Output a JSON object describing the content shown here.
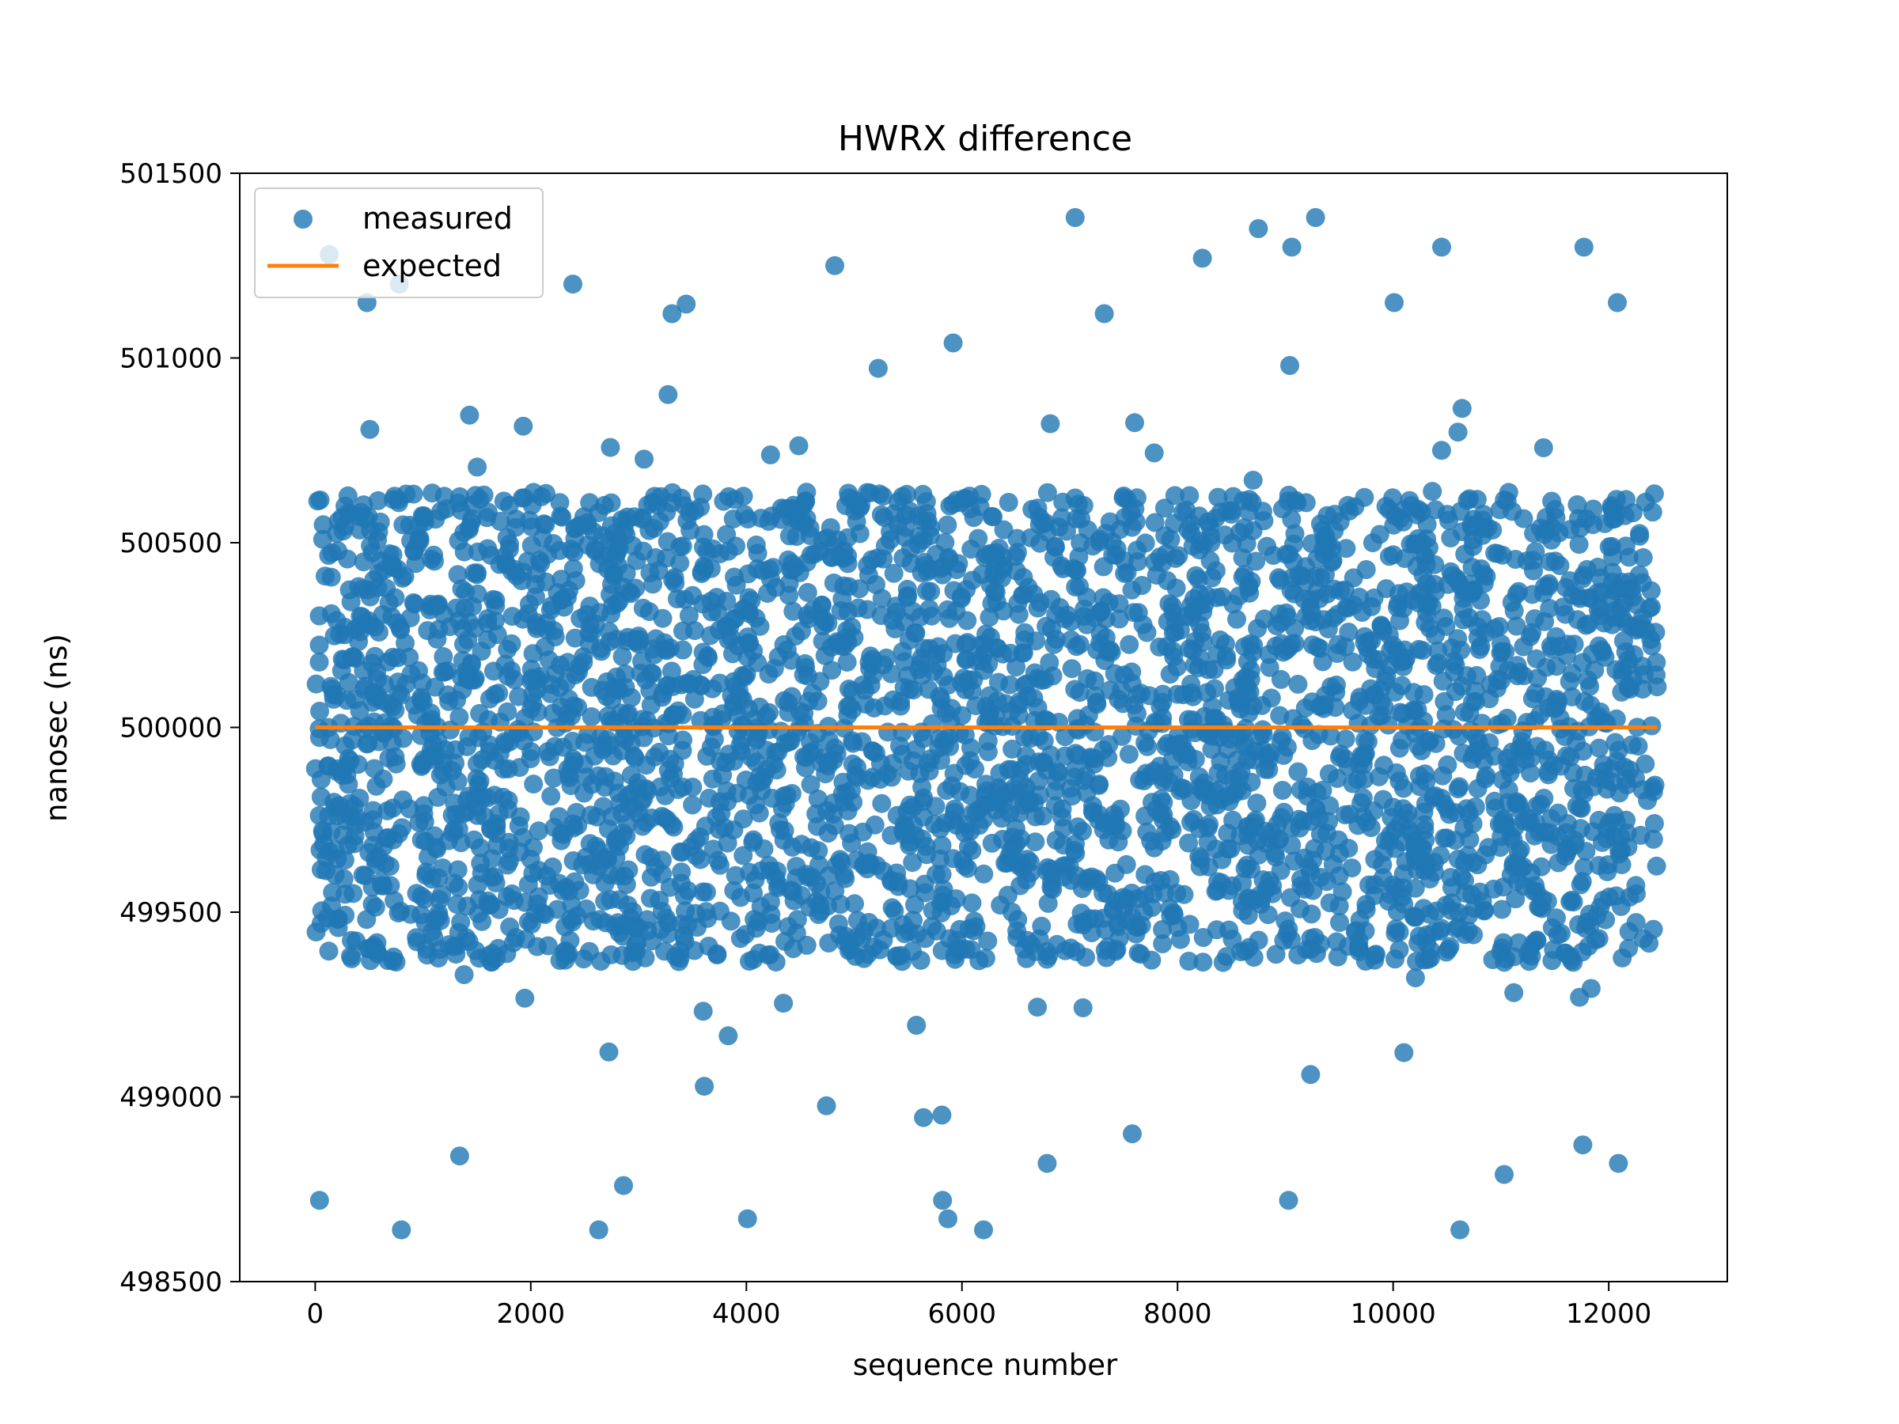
{
  "chart_data": {
    "type": "scatter",
    "title": "HWRX difference",
    "xlabel": "sequence number",
    "ylabel": "nanosec (ns)",
    "xlim": [
      -700,
      13100
    ],
    "ylim": [
      498500,
      501500
    ],
    "xticks": [
      0,
      2000,
      4000,
      6000,
      8000,
      10000,
      12000
    ],
    "yticks": [
      498500,
      499000,
      499500,
      500000,
      500500,
      501000,
      501500
    ],
    "grid": false,
    "legend_position": "top-left",
    "series": [
      {
        "name": "measured",
        "kind": "scatter",
        "color": "#1f77b4",
        "opacity": 0.8,
        "point_count_approx": 12500,
        "x_range": [
          0,
          12450
        ],
        "center": 500000,
        "dense_band": [
          499350,
          500650
        ],
        "outlier_points": [
          [
            130,
            501280
          ],
          [
            780,
            501200
          ],
          [
            40,
            498720
          ],
          [
            800,
            498640
          ],
          [
            2390,
            501200
          ],
          [
            2630,
            498640
          ],
          [
            4010,
            498670
          ],
          [
            6200,
            498640
          ],
          [
            7050,
            501380
          ],
          [
            8750,
            501350
          ],
          [
            9280,
            501380
          ],
          [
            9030,
            498720
          ],
          [
            10450,
            501300
          ],
          [
            10620,
            498640
          ],
          [
            11770,
            501300
          ],
          [
            12090,
            498820
          ],
          [
            4820,
            501250
          ],
          [
            5870,
            498670
          ],
          [
            8230,
            501270
          ],
          [
            11030,
            498790
          ],
          [
            1340,
            498840
          ],
          [
            6790,
            498820
          ],
          [
            2860,
            498760
          ],
          [
            9060,
            501300
          ],
          [
            12080,
            501150
          ],
          [
            11760,
            498870
          ],
          [
            5820,
            498720
          ],
          [
            7580,
            498900
          ],
          [
            480,
            501150
          ],
          [
            3310,
            501120
          ],
          [
            10010,
            501150
          ],
          [
            7320,
            501120
          ]
        ]
      },
      {
        "name": "expected",
        "kind": "line",
        "color": "#ff7f0e",
        "x": [
          0,
          12450
        ],
        "y": [
          500000,
          500000
        ]
      }
    ]
  }
}
